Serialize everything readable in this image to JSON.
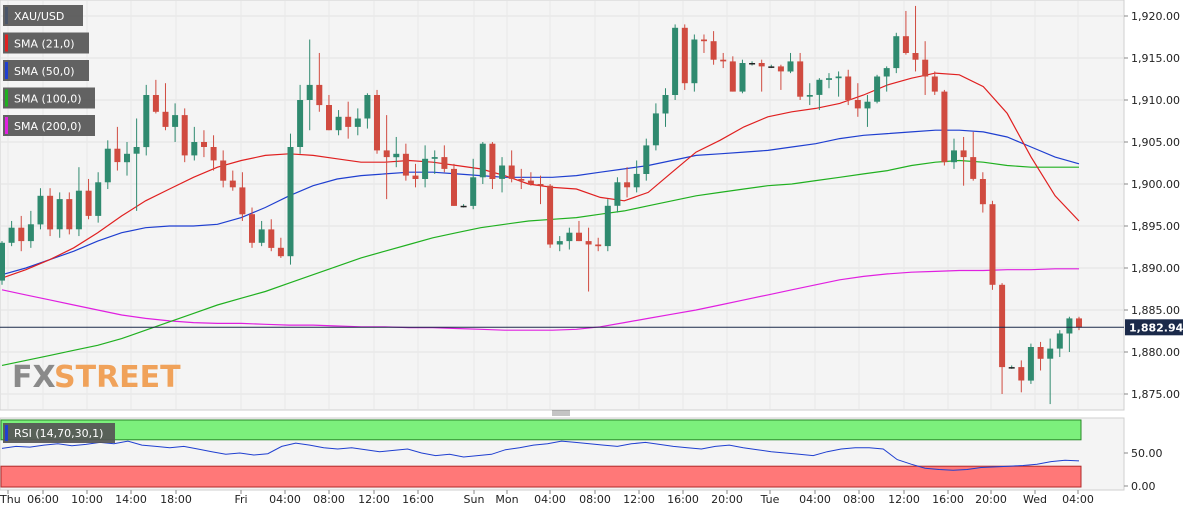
{
  "chart_data": {
    "type": "candlestick",
    "symbol": "XAU/USD",
    "legend": [
      {
        "label": "XAU/USD",
        "color": "#4a5568"
      },
      {
        "label": "SMA (21,0)",
        "color": "#e02020"
      },
      {
        "label": "SMA (50,0)",
        "color": "#1f3fd0"
      },
      {
        "label": "SMA (100,0)",
        "color": "#20b020"
      },
      {
        "label": "SMA (200,0)",
        "color": "#e020e0"
      }
    ],
    "y_ticks": [
      "1,920.00",
      "1,915.00",
      "1,910.00",
      "1,905.00",
      "1,900.00",
      "1,895.00",
      "1,890.00",
      "1,885.00",
      "1,880.00",
      "1,875.00"
    ],
    "ylim": [
      1873.4,
      1922.0
    ],
    "last_price": "1,882.94",
    "x_labels": [
      "Thu",
      "06:00",
      "10:00",
      "14:00",
      "18:00",
      "Fri",
      "04:00",
      "08:00",
      "12:00",
      "16:00",
      "Sun",
      "Mon",
      "04:00",
      "08:00",
      "12:00",
      "16:00",
      "20:00",
      "Tue",
      "04:00",
      "08:00",
      "12:00",
      "16:00",
      "20:00",
      "Wed",
      "04:00"
    ],
    "up_color": "#2f8a6f",
    "down_color": "#d04b40",
    "candles": [
      [
        1888.5,
        1893.2,
        1888.0,
        1893.0
      ],
      [
        1893.0,
        1895.6,
        1892.6,
        1894.8
      ],
      [
        1894.8,
        1896.2,
        1892.0,
        1893.2
      ],
      [
        1893.2,
        1896.8,
        1892.4,
        1895.2
      ],
      [
        1895.2,
        1899.5,
        1894.6,
        1898.6
      ],
      [
        1898.6,
        1899.5,
        1893.8,
        1894.6
      ],
      [
        1894.6,
        1899.0,
        1893.6,
        1898.2
      ],
      [
        1898.2,
        1899.0,
        1894.0,
        1894.6
      ],
      [
        1894.6,
        1902.0,
        1893.8,
        1899.2
      ],
      [
        1899.2,
        1900.6,
        1895.8,
        1896.2
      ],
      [
        1896.2,
        1901.4,
        1895.4,
        1900.2
      ],
      [
        1900.2,
        1905.2,
        1899.4,
        1904.2
      ],
      [
        1904.2,
        1906.8,
        1901.6,
        1902.6
      ],
      [
        1902.6,
        1905.0,
        1901.0,
        1903.6
      ],
      [
        1903.6,
        1907.8,
        1896.8,
        1904.4
      ],
      [
        1904.4,
        1911.8,
        1903.4,
        1910.6
      ],
      [
        1910.6,
        1912.4,
        1908.4,
        1908.6
      ],
      [
        1908.6,
        1912.0,
        1906.4,
        1906.8
      ],
      [
        1906.8,
        1909.6,
        1905.0,
        1908.2
      ],
      [
        1908.2,
        1909.0,
        1902.6,
        1903.4
      ],
      [
        1903.4,
        1906.8,
        1902.8,
        1905.0
      ],
      [
        1905.0,
        1906.4,
        1903.2,
        1904.4
      ],
      [
        1904.4,
        1905.8,
        1901.6,
        1902.8
      ],
      [
        1902.8,
        1904.0,
        1899.6,
        1900.4
      ],
      [
        1900.4,
        1901.6,
        1899.2,
        1899.6
      ],
      [
        1899.6,
        1901.4,
        1895.6,
        1896.4
      ],
      [
        1896.4,
        1897.2,
        1892.4,
        1893.0
      ],
      [
        1893.0,
        1895.6,
        1892.6,
        1894.6
      ],
      [
        1894.6,
        1895.8,
        1892.0,
        1892.4
      ],
      [
        1892.4,
        1893.6,
        1891.2,
        1891.4
      ],
      [
        1891.4,
        1906.0,
        1890.4,
        1904.4
      ],
      [
        1904.4,
        1911.8,
        1903.6,
        1910.0
      ],
      [
        1910.0,
        1917.2,
        1906.4,
        1911.8
      ],
      [
        1911.8,
        1915.6,
        1908.6,
        1909.4
      ],
      [
        1909.4,
        1910.6,
        1906.4,
        1906.4
      ],
      [
        1906.4,
        1908.8,
        1905.8,
        1908.0
      ],
      [
        1908.0,
        1909.8,
        1905.4,
        1906.8
      ],
      [
        1906.8,
        1909.0,
        1905.8,
        1907.8
      ],
      [
        1907.8,
        1910.8,
        1906.6,
        1910.6
      ],
      [
        1910.6,
        1911.2,
        1903.6,
        1904.0
      ],
      [
        1904.0,
        1908.2,
        1898.2,
        1903.2
      ],
      [
        1903.2,
        1905.6,
        1902.0,
        1903.6
      ],
      [
        1903.6,
        1904.8,
        1900.4,
        1901.0
      ],
      [
        1901.0,
        1902.4,
        1899.6,
        1900.6
      ],
      [
        1900.6,
        1904.6,
        1899.6,
        1903.0
      ],
      [
        1903.0,
        1904.0,
        1901.2,
        1903.2
      ],
      [
        1903.2,
        1904.6,
        1901.4,
        1901.8
      ],
      [
        1901.8,
        1902.4,
        1897.4,
        1897.4
      ],
      [
        1897.4,
        1897.6,
        1897.2,
        1897.4
      ],
      [
        1897.4,
        1903.0,
        1897.0,
        1900.8
      ],
      [
        1900.8,
        1905.0,
        1900.0,
        1904.8
      ],
      [
        1904.8,
        1905.0,
        1899.4,
        1900.6
      ],
      [
        1900.6,
        1903.2,
        1899.0,
        1902.2
      ],
      [
        1902.2,
        1904.0,
        1900.2,
        1900.6
      ],
      [
        1900.6,
        1901.8,
        1899.4,
        1900.4
      ],
      [
        1900.4,
        1901.4,
        1899.8,
        1900.0
      ],
      [
        1900.0,
        1901.0,
        1897.6,
        1899.8
      ],
      [
        1899.8,
        1900.0,
        1892.4,
        1892.8
      ],
      [
        1892.8,
        1893.8,
        1892.0,
        1893.2
      ],
      [
        1893.2,
        1894.8,
        1892.2,
        1894.2
      ],
      [
        1894.2,
        1895.6,
        1893.2,
        1893.2
      ],
      [
        1893.2,
        1894.8,
        1887.2,
        1892.8
      ],
      [
        1892.8,
        1893.6,
        1892.0,
        1892.6
      ],
      [
        1892.6,
        1898.2,
        1892.0,
        1897.4
      ],
      [
        1897.4,
        1900.8,
        1896.6,
        1900.2
      ],
      [
        1900.2,
        1902.0,
        1898.4,
        1899.6
      ],
      [
        1899.6,
        1902.8,
        1899.0,
        1901.2
      ],
      [
        1901.2,
        1905.4,
        1900.4,
        1904.6
      ],
      [
        1904.6,
        1909.6,
        1904.0,
        1908.4
      ],
      [
        1908.4,
        1911.4,
        1906.8,
        1910.6
      ],
      [
        1910.6,
        1919.0,
        1910.0,
        1918.6
      ],
      [
        1918.6,
        1919.0,
        1911.2,
        1912.0
      ],
      [
        1912.0,
        1917.8,
        1911.0,
        1917.2
      ],
      [
        1917.2,
        1917.8,
        1915.6,
        1917.0
      ],
      [
        1917.0,
        1918.2,
        1914.2,
        1914.8
      ],
      [
        1914.8,
        1915.6,
        1913.8,
        1914.6
      ],
      [
        1914.6,
        1915.2,
        1911.0,
        1911.0
      ],
      [
        1911.0,
        1914.8,
        1910.8,
        1914.4
      ],
      [
        1914.4,
        1914.6,
        1914.1,
        1914.4
      ],
      [
        1914.4,
        1914.8,
        1911.0,
        1914.0
      ],
      [
        1914.0,
        1914.2,
        1913.8,
        1914.0
      ],
      [
        1914.0,
        1914.2,
        1911.2,
        1913.4
      ],
      [
        1913.4,
        1915.6,
        1913.2,
        1914.6
      ],
      [
        1914.6,
        1915.6,
        1910.0,
        1910.4
      ],
      [
        1910.4,
        1912.0,
        1909.4,
        1910.6
      ],
      [
        1910.6,
        1912.6,
        1908.8,
        1912.4
      ],
      [
        1912.4,
        1913.2,
        1911.4,
        1912.6
      ],
      [
        1912.6,
        1913.4,
        1910.4,
        1912.8
      ],
      [
        1912.8,
        1913.6,
        1909.4,
        1910.0
      ],
      [
        1910.0,
        1912.0,
        1908.0,
        1909.0
      ],
      [
        1909.0,
        1910.6,
        1906.8,
        1909.8
      ],
      [
        1909.8,
        1913.0,
        1909.6,
        1912.8
      ],
      [
        1912.8,
        1914.0,
        1911.0,
        1913.8
      ],
      [
        1913.8,
        1918.0,
        1913.2,
        1917.6
      ],
      [
        1917.6,
        1920.6,
        1915.4,
        1915.6
      ],
      [
        1915.6,
        1921.2,
        1913.4,
        1914.8
      ],
      [
        1914.8,
        1917.0,
        1910.6,
        1912.8
      ],
      [
        1912.8,
        1913.4,
        1910.6,
        1911.0
      ],
      [
        1911.0,
        1911.2,
        1902.2,
        1902.6
      ],
      [
        1902.6,
        1905.4,
        1901.8,
        1904.0
      ],
      [
        1904.0,
        1905.6,
        1899.8,
        1903.2
      ],
      [
        1903.2,
        1906.2,
        1900.4,
        1900.6
      ],
      [
        1900.6,
        1901.4,
        1896.6,
        1897.6
      ],
      [
        1897.6,
        1898.0,
        1887.4,
        1888.0
      ],
      [
        1888.0,
        1888.2,
        1875.0,
        1878.2
      ],
      [
        1878.2,
        1878.4,
        1878.0,
        1878.2
      ],
      [
        1878.2,
        1879.0,
        1875.2,
        1876.6
      ],
      [
        1876.6,
        1881.0,
        1876.2,
        1880.6
      ],
      [
        1880.6,
        1881.2,
        1877.8,
        1879.2
      ],
      [
        1879.2,
        1881.6,
        1873.8,
        1880.4
      ],
      [
        1880.4,
        1882.6,
        1879.4,
        1882.2
      ],
      [
        1882.2,
        1884.2,
        1880.0,
        1884.0
      ],
      [
        1884.0,
        1884.2,
        1882.6,
        1882.9
      ]
    ],
    "sma21": [
      1888.8,
      1889.8,
      1891.0,
      1892.4,
      1894.2,
      1896.2,
      1898.0,
      1899.4,
      1900.8,
      1902.0,
      1902.8,
      1903.4,
      1903.6,
      1903.4,
      1903.0,
      1902.6,
      1902.6,
      1902.8,
      1902.6,
      1902.2,
      1901.8,
      1901.0,
      1900.0,
      1899.6,
      1899.4,
      1898.4,
      1898.0,
      1899.0,
      1901.4,
      1903.8,
      1905.2,
      1906.8,
      1908.0,
      1908.6,
      1909.0,
      1909.6,
      1910.6,
      1911.8,
      1912.6,
      1913.2,
      1913.0,
      1911.6,
      1908.4,
      1903.2,
      1898.6,
      1895.6
    ],
    "sma50": [
      1889.2,
      1890.0,
      1891.0,
      1892.0,
      1893.2,
      1894.2,
      1894.8,
      1895.0,
      1895.0,
      1895.2,
      1896.0,
      1897.2,
      1898.6,
      1899.8,
      1900.6,
      1901.0,
      1901.2,
      1901.4,
      1901.4,
      1901.2,
      1901.0,
      1900.8,
      1900.8,
      1900.8,
      1901.0,
      1901.4,
      1901.8,
      1902.2,
      1902.8,
      1903.4,
      1903.6,
      1903.8,
      1904.0,
      1904.4,
      1904.8,
      1905.4,
      1905.8,
      1906.0,
      1906.2,
      1906.4,
      1906.4,
      1906.2,
      1905.6,
      1904.4,
      1903.2,
      1902.4
    ],
    "sma100": [
      1878.4,
      1879.0,
      1879.6,
      1880.2,
      1880.8,
      1881.6,
      1882.6,
      1883.6,
      1884.6,
      1885.6,
      1886.4,
      1887.2,
      1888.2,
      1889.2,
      1890.2,
      1891.2,
      1892.0,
      1892.8,
      1893.6,
      1894.2,
      1894.8,
      1895.2,
      1895.6,
      1895.8,
      1896.0,
      1896.4,
      1896.8,
      1897.4,
      1898.0,
      1898.6,
      1899.0,
      1899.4,
      1899.8,
      1900.0,
      1900.4,
      1900.8,
      1901.2,
      1901.6,
      1902.2,
      1902.6,
      1902.8,
      1902.6,
      1902.2,
      1902.0,
      1902.0,
      1902.0
    ],
    "sma200": [
      1887.4,
      1886.8,
      1886.2,
      1885.6,
      1885.0,
      1884.4,
      1884.0,
      1883.7,
      1883.5,
      1883.4,
      1883.4,
      1883.3,
      1883.2,
      1883.2,
      1883.1,
      1883.0,
      1883.0,
      1882.9,
      1882.9,
      1882.8,
      1882.7,
      1882.6,
      1882.6,
      1882.6,
      1882.7,
      1883.0,
      1883.5,
      1884.0,
      1884.5,
      1885.0,
      1885.6,
      1886.2,
      1886.8,
      1887.4,
      1888.0,
      1888.6,
      1889.0,
      1889.3,
      1889.5,
      1889.6,
      1889.7,
      1889.7,
      1889.8,
      1889.8,
      1889.9,
      1889.9
    ],
    "rsi": {
      "label": "RSI (14,70,30,1)",
      "ylim": [
        0,
        100
      ],
      "overbought": 70,
      "oversold": 30,
      "y_ticks": [
        "50.00",
        "0.00"
      ],
      "values": [
        57,
        60,
        59,
        62,
        64,
        61,
        63,
        66,
        64,
        68,
        62,
        60,
        58,
        60,
        56,
        52,
        48,
        50,
        47,
        49,
        60,
        65,
        62,
        58,
        56,
        58,
        55,
        52,
        54,
        56,
        50,
        46,
        48,
        44,
        46,
        48,
        55,
        58,
        62,
        64,
        68,
        66,
        64,
        62,
        60,
        64,
        66,
        63,
        60,
        58,
        56,
        60,
        62,
        58,
        55,
        52,
        50,
        48,
        46,
        52,
        56,
        58,
        58,
        56,
        40,
        33,
        27,
        25,
        24,
        25,
        28,
        29,
        30,
        31,
        33,
        37,
        39,
        38
      ]
    },
    "logo": "FXSTREET"
  }
}
